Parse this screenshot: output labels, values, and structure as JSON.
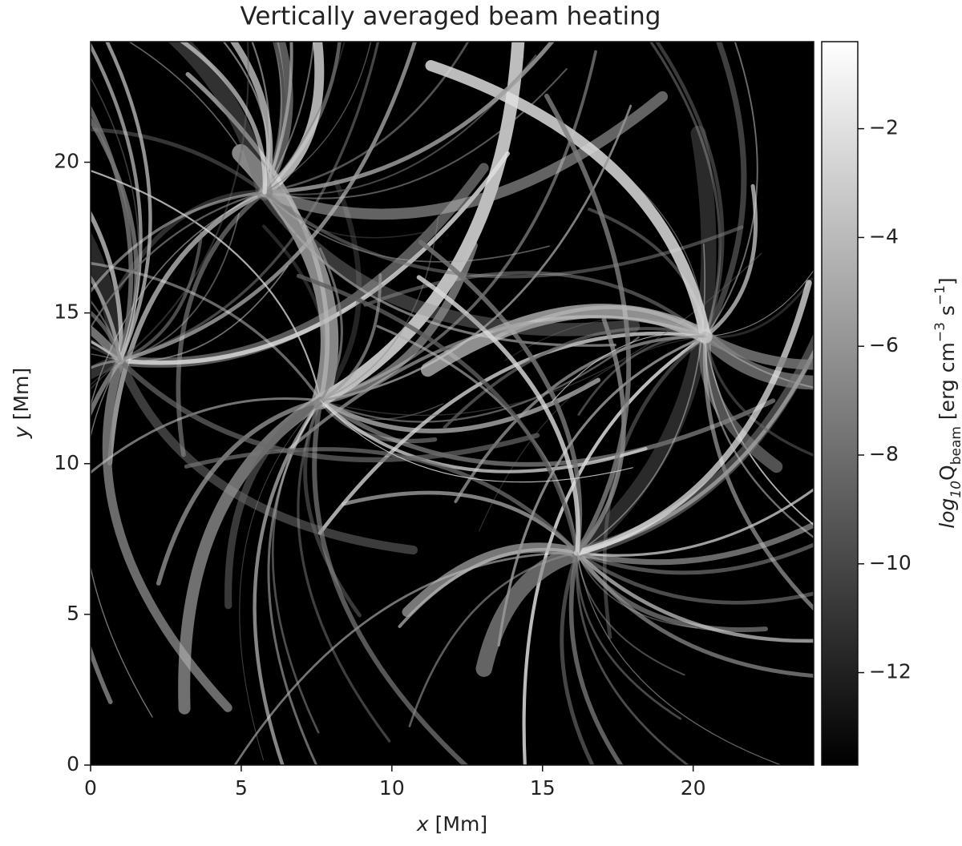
{
  "chart_data": {
    "type": "heatmap",
    "title": "Vertically averaged beam heating",
    "x_label": [
      {
        "text": "x",
        "italic": true
      },
      {
        "text": " [Mm]"
      }
    ],
    "y_label": [
      {
        "text": "y",
        "italic": true
      },
      {
        "text": " [Mm]"
      }
    ],
    "xlim": [
      0,
      24
    ],
    "ylim": [
      0,
      24
    ],
    "xticks": [
      0,
      5,
      10,
      15,
      20
    ],
    "yticks": [
      0,
      5,
      10,
      15,
      20
    ],
    "colormap": "gray",
    "clim": [
      -13.7,
      -0.4
    ],
    "cticks": [
      {
        "value": -2,
        "label": "−2"
      },
      {
        "value": -4,
        "label": "−4"
      },
      {
        "value": -6,
        "label": "−6"
      },
      {
        "value": -8,
        "label": "−8"
      },
      {
        "value": -10,
        "label": "−10"
      },
      {
        "value": -12,
        "label": "−12"
      }
    ],
    "colorbar_label": [
      {
        "text": "log",
        "italic": true
      },
      {
        "text": "10",
        "sub": true,
        "italic": true
      },
      {
        "text": "Q"
      },
      {
        "text": "beam",
        "sub": true
      },
      {
        "text": " [erg cm"
      },
      {
        "text": "−3",
        "sup": true
      },
      {
        "text": " s"
      },
      {
        "text": "−1",
        "sup": true
      },
      {
        "text": "]"
      }
    ]
  }
}
